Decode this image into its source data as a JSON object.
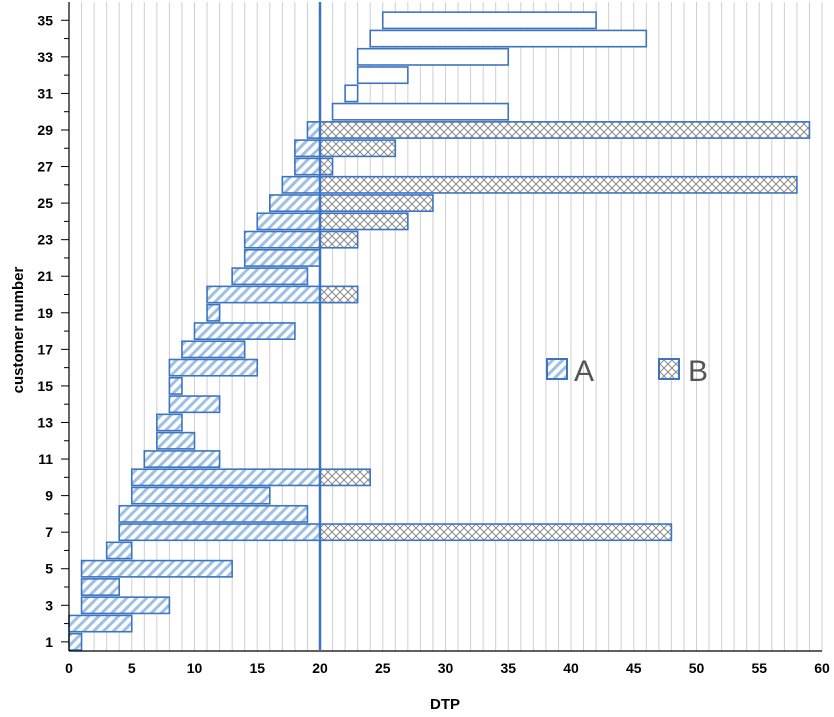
{
  "chart_data": {
    "type": "bar",
    "orientation": "horizontal",
    "stacked": true,
    "title": "",
    "xlabel": "DTP",
    "ylabel": "customer number",
    "xlim": [
      0,
      60
    ],
    "ylim": [
      1,
      35
    ],
    "x_ticks": [
      0,
      5,
      10,
      15,
      20,
      25,
      30,
      35,
      40,
      45,
      50,
      55,
      60
    ],
    "y_tick_labels": [
      1,
      3,
      5,
      7,
      9,
      11,
      13,
      15,
      17,
      19,
      21,
      23,
      25,
      27,
      29,
      31,
      33,
      35
    ],
    "grid": "vertical minor gridlines",
    "threshold_line": 20,
    "legend_position": "center-right",
    "series": [
      {
        "name": "A",
        "fill": "diagonal-hatch",
        "color": "#3c74c2"
      },
      {
        "name": "B",
        "fill": "crosshatch",
        "color": "#3c74c2"
      },
      {
        "name": "",
        "fill": "none",
        "color": "#3c74c2"
      }
    ],
    "customers": [
      {
        "customer": 1,
        "start": 0,
        "end": 1,
        "series": "A"
      },
      {
        "customer": 2,
        "start": 0,
        "end": 5,
        "series": "A"
      },
      {
        "customer": 3,
        "start": 1,
        "end": 8,
        "series": "A"
      },
      {
        "customer": 4,
        "start": 1,
        "end": 4,
        "series": "A"
      },
      {
        "customer": 5,
        "start": 1,
        "end": 13,
        "series": "A"
      },
      {
        "customer": 6,
        "start": 3,
        "end": 5,
        "series": "A"
      },
      {
        "customer": 7,
        "start": 4,
        "end": 48,
        "series": "A+B"
      },
      {
        "customer": 8,
        "start": 4,
        "end": 19,
        "series": "A"
      },
      {
        "customer": 9,
        "start": 5,
        "end": 16,
        "series": "A"
      },
      {
        "customer": 10,
        "start": 5,
        "end": 24,
        "series": "A+B"
      },
      {
        "customer": 11,
        "start": 6,
        "end": 12,
        "series": "A"
      },
      {
        "customer": 12,
        "start": 7,
        "end": 10,
        "series": "A"
      },
      {
        "customer": 13,
        "start": 7,
        "end": 9,
        "series": "A"
      },
      {
        "customer": 14,
        "start": 8,
        "end": 12,
        "series": "A"
      },
      {
        "customer": 15,
        "start": 8,
        "end": 9,
        "series": "A"
      },
      {
        "customer": 16,
        "start": 8,
        "end": 15,
        "series": "A"
      },
      {
        "customer": 17,
        "start": 9,
        "end": 14,
        "series": "A"
      },
      {
        "customer": 18,
        "start": 10,
        "end": 18,
        "series": "A"
      },
      {
        "customer": 19,
        "start": 11,
        "end": 12,
        "series": "A"
      },
      {
        "customer": 20,
        "start": 11,
        "end": 23,
        "series": "A+B"
      },
      {
        "customer": 21,
        "start": 13,
        "end": 19,
        "series": "A"
      },
      {
        "customer": 22,
        "start": 14,
        "end": 20,
        "series": "A"
      },
      {
        "customer": 23,
        "start": 14,
        "end": 23,
        "series": "A+B"
      },
      {
        "customer": 24,
        "start": 15,
        "end": 27,
        "series": "A+B"
      },
      {
        "customer": 25,
        "start": 16,
        "end": 29,
        "series": "A+B"
      },
      {
        "customer": 26,
        "start": 17,
        "end": 58,
        "series": "A+B"
      },
      {
        "customer": 27,
        "start": 18,
        "end": 21,
        "series": "A+B"
      },
      {
        "customer": 28,
        "start": 18,
        "end": 26,
        "series": "A+B"
      },
      {
        "customer": 29,
        "start": 19,
        "end": 59,
        "series": "A+B"
      },
      {
        "customer": 30,
        "start": 21,
        "end": 35,
        "series": "none"
      },
      {
        "customer": 31,
        "start": 22,
        "end": 23,
        "series": "none"
      },
      {
        "customer": 32,
        "start": 23,
        "end": 27,
        "series": "none"
      },
      {
        "customer": 33,
        "start": 23,
        "end": 35,
        "series": "none"
      },
      {
        "customer": 34,
        "start": 24,
        "end": 46,
        "series": "none"
      },
      {
        "customer": 35,
        "start": 25,
        "end": 42,
        "series": "none"
      }
    ]
  }
}
